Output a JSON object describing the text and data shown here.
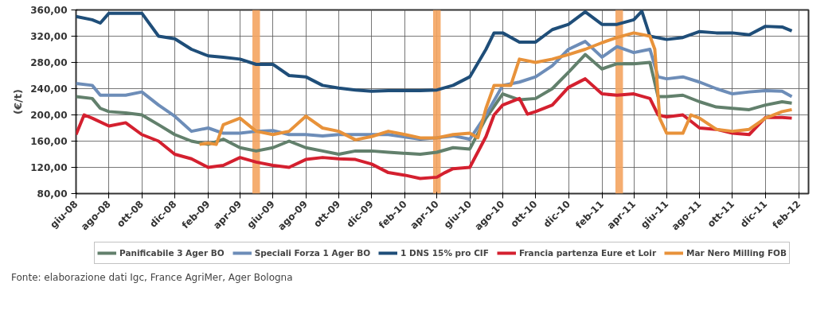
{
  "chart_data": {
    "type": "line",
    "ylabel": "(€/t)",
    "ylim": [
      80,
      360
    ],
    "yticks": [
      {
        "value": 80,
        "label": "80,00"
      },
      {
        "value": 120,
        "label": "120,00"
      },
      {
        "value": 160,
        "label": "160,00"
      },
      {
        "value": 200,
        "label": "200,00"
      },
      {
        "value": 240,
        "label": "240,00"
      },
      {
        "value": 280,
        "label": "280,00"
      },
      {
        "value": 320,
        "label": "320,00"
      },
      {
        "value": 360,
        "label": "360,00"
      }
    ],
    "xlim": [
      "2008-06-01",
      "2012-02-19"
    ],
    "xticks": [
      {
        "value": "2008-06-01",
        "label": "giu-08"
      },
      {
        "value": "2008-08-01",
        "label": "ago-08"
      },
      {
        "value": "2008-10-01",
        "label": "ott-08"
      },
      {
        "value": "2008-12-01",
        "label": "dic-08"
      },
      {
        "value": "2009-02-01",
        "label": "feb-09"
      },
      {
        "value": "2009-04-01",
        "label": "apr-09"
      },
      {
        "value": "2009-06-01",
        "label": "giu-09"
      },
      {
        "value": "2009-08-01",
        "label": "ago-09"
      },
      {
        "value": "2009-10-01",
        "label": "ott-09"
      },
      {
        "value": "2009-12-01",
        "label": "dic-09"
      },
      {
        "value": "2010-02-01",
        "label": "feb-10"
      },
      {
        "value": "2010-04-01",
        "label": "apr-10"
      },
      {
        "value": "2010-06-01",
        "label": "giu-10"
      },
      {
        "value": "2010-08-01",
        "label": "ago-10"
      },
      {
        "value": "2010-10-01",
        "label": "ott-10"
      },
      {
        "value": "2010-12-01",
        "label": "dic-10"
      },
      {
        "value": "2011-02-01",
        "label": "feb-11"
      },
      {
        "value": "2011-04-01",
        "label": "apr-11"
      },
      {
        "value": "2011-06-01",
        "label": "giu-11"
      },
      {
        "value": "2011-08-01",
        "label": "ago-11"
      },
      {
        "value": "2011-10-01",
        "label": "ott-11"
      },
      {
        "value": "2011-12-01",
        "label": "dic-11"
      },
      {
        "value": "2012-02-01",
        "label": "feb-12"
      }
    ],
    "grid": true,
    "legend": "bottom",
    "marker": "none",
    "line_style": "solid",
    "bands": [
      {
        "axis": "x",
        "from": "2009-04-24",
        "to": "2009-05-08",
        "color": "#f4a460"
      },
      {
        "axis": "x",
        "from": "2010-03-25",
        "to": "2010-04-08",
        "color": "#f4a460"
      },
      {
        "axis": "x",
        "from": "2011-02-26",
        "to": "2011-03-12",
        "color": "#f4a460"
      }
    ],
    "annotations": [
      "Fonte: elaborazione dati Igc, France AgriMer, Ager Bologna"
    ],
    "series": [
      {
        "name": "Panificabile 3 Ager BO",
        "color": "#62806c",
        "x": [
          "2008-06-01",
          "2008-07-01",
          "2008-07-16",
          "2008-08-01",
          "2008-09-01",
          "2008-10-01",
          "2008-11-01",
          "2008-12-01",
          "2009-01-01",
          "2009-02-01",
          "2009-03-01",
          "2009-04-01",
          "2009-05-01",
          "2009-06-01",
          "2009-07-01",
          "2009-08-01",
          "2009-09-01",
          "2009-10-01",
          "2009-11-01",
          "2009-12-01",
          "2010-01-01",
          "2010-03-01",
          "2010-04-01",
          "2010-05-01",
          "2010-06-01",
          "2010-07-01",
          "2010-08-01",
          "2010-09-01",
          "2010-10-01",
          "2010-11-01",
          "2010-12-01",
          "2011-01-01",
          "2011-02-01",
          "2011-03-01",
          "2011-04-01",
          "2011-05-01",
          "2011-05-16",
          "2011-06-01",
          "2011-07-01",
          "2011-08-01",
          "2011-09-01",
          "2011-10-01",
          "2011-11-01",
          "2011-12-01",
          "2012-01-01",
          "2012-01-19"
        ],
        "values": [
          228,
          225,
          210,
          205,
          203,
          200,
          185,
          170,
          160,
          155,
          163,
          150,
          145,
          150,
          160,
          150,
          145,
          140,
          145,
          145,
          143,
          140,
          143,
          150,
          148,
          195,
          232,
          223,
          225,
          240,
          265,
          292,
          270,
          278,
          278,
          280,
          228,
          228,
          230,
          220,
          212,
          210,
          208,
          215,
          220,
          218
        ]
      },
      {
        "name": "Speciali Forza 1 Ager BO",
        "color": "#6d8db8",
        "x": [
          "2008-06-01",
          "2008-07-01",
          "2008-07-16",
          "2008-09-01",
          "2008-10-01",
          "2008-11-01",
          "2008-12-01",
          "2009-01-01",
          "2009-02-01",
          "2009-03-01",
          "2009-04-01",
          "2009-05-01",
          "2009-06-01",
          "2009-07-01",
          "2009-08-01",
          "2009-09-01",
          "2009-10-01",
          "2009-11-01",
          "2009-12-01",
          "2010-01-01",
          "2010-03-01",
          "2010-04-01",
          "2010-05-01",
          "2010-06-01",
          "2010-07-01",
          "2010-08-01",
          "2010-09-01",
          "2010-10-01",
          "2010-11-01",
          "2010-12-01",
          "2011-01-01",
          "2011-02-01",
          "2011-03-01",
          "2011-04-01",
          "2011-05-01",
          "2011-05-16",
          "2011-06-01",
          "2011-07-01",
          "2011-08-01",
          "2011-09-01",
          "2011-10-01",
          "2011-11-01",
          "2011-12-01",
          "2012-01-01",
          "2012-01-19"
        ],
        "values": [
          248,
          245,
          230,
          230,
          235,
          215,
          198,
          175,
          180,
          172,
          172,
          175,
          176,
          170,
          170,
          168,
          170,
          170,
          170,
          170,
          163,
          165,
          168,
          163,
          200,
          245,
          250,
          258,
          275,
          300,
          312,
          288,
          304,
          295,
          300,
          258,
          255,
          258,
          250,
          240,
          232,
          235,
          237,
          236,
          228
        ]
      },
      {
        "name": "1 DNS 15% pro CIF",
        "color": "#1f4e79",
        "x": [
          "2008-06-01",
          "2008-07-01",
          "2008-07-16",
          "2008-08-01",
          "2008-10-01",
          "2008-11-01",
          "2008-12-01",
          "2009-01-01",
          "2009-02-01",
          "2009-03-01",
          "2009-04-01",
          "2009-05-01",
          "2009-06-01",
          "2009-07-01",
          "2009-08-01",
          "2009-09-01",
          "2009-10-01",
          "2009-11-01",
          "2009-12-01",
          "2010-01-01",
          "2010-03-01",
          "2010-04-01",
          "2010-05-01",
          "2010-06-01",
          "2010-07-01",
          "2010-07-16",
          "2010-08-01",
          "2010-09-01",
          "2010-10-01",
          "2010-11-01",
          "2010-12-01",
          "2011-01-01",
          "2011-02-01",
          "2011-03-01",
          "2011-04-01",
          "2011-04-16",
          "2011-05-01",
          "2011-06-01",
          "2011-07-01",
          "2011-08-01",
          "2011-09-01",
          "2011-10-01",
          "2011-11-01",
          "2011-12-01",
          "2012-01-01",
          "2012-01-19"
        ],
        "values": [
          350,
          345,
          340,
          355,
          355,
          320,
          316,
          300,
          290,
          288,
          285,
          277,
          277,
          260,
          258,
          245,
          241,
          238,
          236,
          237,
          237,
          238,
          245,
          258,
          300,
          325,
          325,
          311,
          311,
          330,
          338,
          357,
          338,
          338,
          345,
          358,
          320,
          315,
          318,
          327,
          325,
          325,
          322,
          335,
          334,
          328
        ]
      },
      {
        "name": "Francia partenza Eure et Loir",
        "color": "#d4202f",
        "x": [
          "2008-06-01",
          "2008-06-16",
          "2008-07-01",
          "2008-08-01",
          "2008-09-01",
          "2008-10-01",
          "2008-11-01",
          "2008-12-01",
          "2009-01-01",
          "2009-02-01",
          "2009-03-01",
          "2009-04-01",
          "2009-05-01",
          "2009-06-01",
          "2009-07-01",
          "2009-08-01",
          "2009-09-01",
          "2009-10-01",
          "2009-11-01",
          "2009-12-01",
          "2010-01-01",
          "2010-02-01",
          "2010-03-01",
          "2010-04-01",
          "2010-04-16",
          "2010-05-01",
          "2010-06-01",
          "2010-07-01",
          "2010-07-16",
          "2010-08-01",
          "2010-09-01",
          "2010-09-16",
          "2010-10-01",
          "2010-11-01",
          "2010-12-01",
          "2011-01-01",
          "2011-02-01",
          "2011-03-01",
          "2011-04-01",
          "2011-05-01",
          "2011-05-16",
          "2011-06-01",
          "2011-07-01",
          "2011-08-01",
          "2011-09-01",
          "2011-10-01",
          "2011-11-01",
          "2011-12-01",
          "2012-01-01",
          "2012-01-19"
        ],
        "values": [
          170,
          200,
          195,
          183,
          188,
          170,
          160,
          140,
          133,
          120,
          123,
          135,
          128,
          123,
          120,
          132,
          135,
          133,
          132,
          125,
          112,
          108,
          103,
          105,
          112,
          118,
          120,
          167,
          200,
          215,
          225,
          201,
          205,
          215,
          242,
          255,
          232,
          230,
          232,
          225,
          200,
          197,
          200,
          180,
          178,
          172,
          170,
          196,
          196,
          195
        ]
      },
      {
        "name": "Mar Nero Milling FOB",
        "color": "#e8923a",
        "x": [
          "2009-01-16",
          "2009-02-01",
          "2009-02-16",
          "2009-03-01",
          "2009-04-01",
          "2009-05-01",
          "2009-06-01",
          "2009-07-01",
          "2009-08-01",
          "2009-09-01",
          "2009-10-01",
          "2009-11-01",
          "2009-12-01",
          "2010-01-01",
          "2010-02-01",
          "2010-03-01",
          "2010-04-01",
          "2010-05-01",
          "2010-06-01",
          "2010-06-16",
          "2010-07-01",
          "2010-07-16",
          "2010-08-16",
          "2010-09-01",
          "2010-10-01",
          "2010-11-01",
          "2010-12-01",
          "2011-01-01",
          "2011-02-01",
          "2011-03-01",
          "2011-04-01",
          "2011-05-01",
          "2011-05-10",
          "2011-05-19",
          "2011-06-01",
          "2011-07-01",
          "2011-07-16",
          "2011-08-01",
          "2011-09-01",
          "2011-10-01",
          "2011-11-01",
          "2011-12-01",
          "2012-01-01",
          "2012-01-19"
        ],
        "values": [
          155,
          157,
          155,
          185,
          195,
          175,
          170,
          175,
          198,
          180,
          175,
          162,
          167,
          175,
          170,
          165,
          165,
          170,
          172,
          165,
          210,
          245,
          245,
          285,
          280,
          285,
          292,
          300,
          310,
          318,
          325,
          320,
          300,
          195,
          172,
          172,
          200,
          195,
          178,
          175,
          178,
          195,
          205,
          208
        ]
      }
    ]
  }
}
